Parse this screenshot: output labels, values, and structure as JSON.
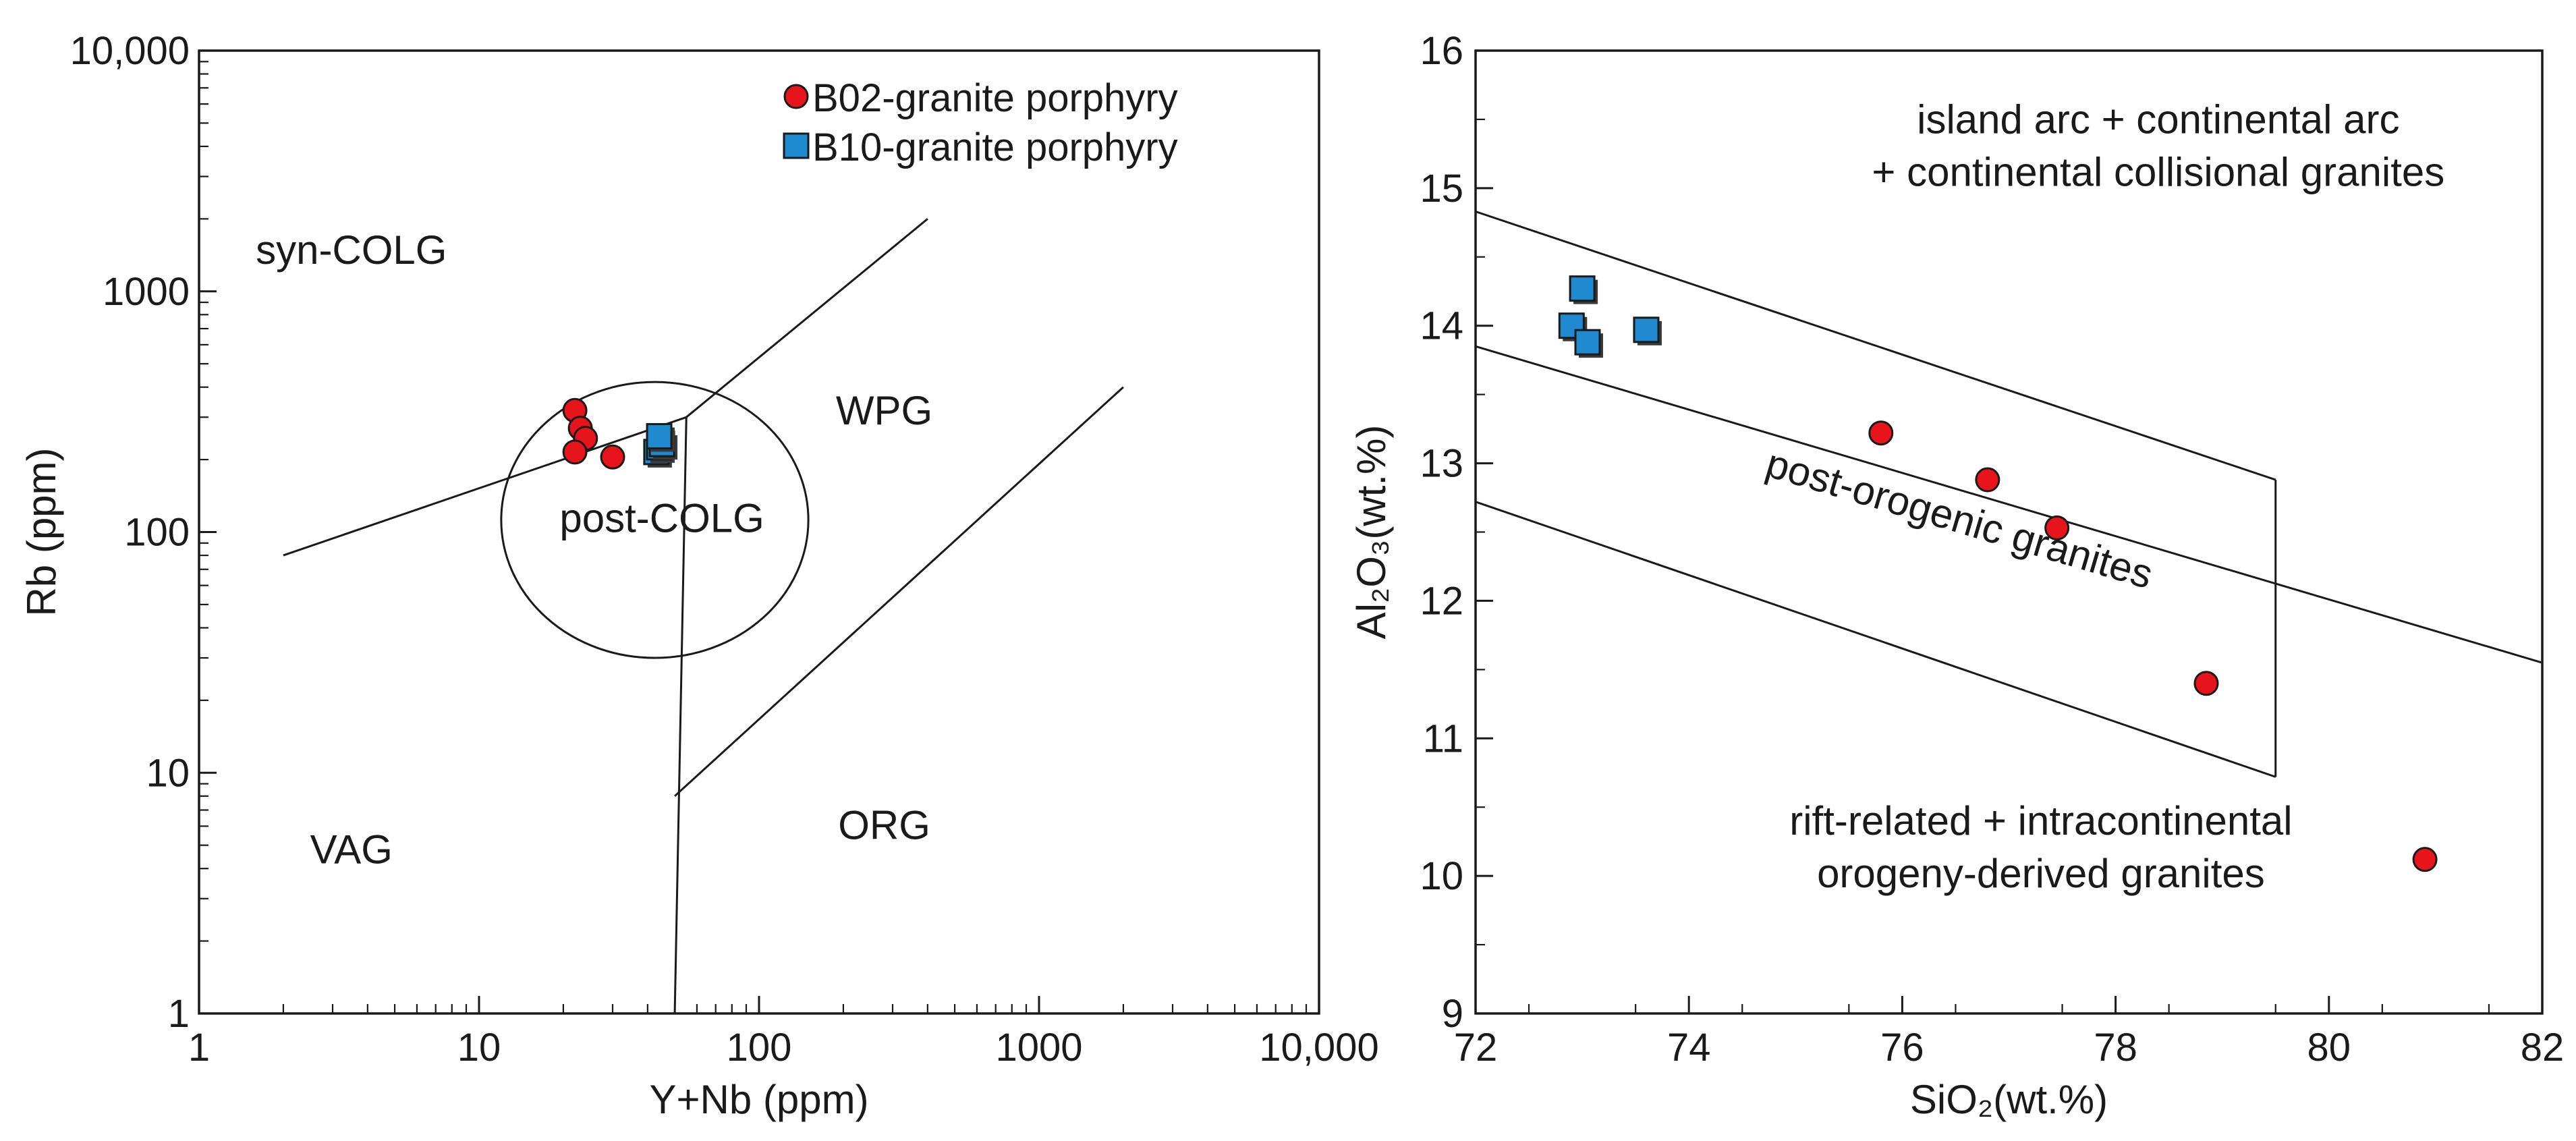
{
  "chart_data": [
    {
      "type": "scatter",
      "xscale": "log",
      "yscale": "log",
      "xlim": [
        1,
        10000
      ],
      "ylim": [
        1,
        10000
      ],
      "xlabel": "Y+Nb (ppm)",
      "ylabel": "Rb (ppm)",
      "xticks": [
        {
          "v": 1,
          "label": "1"
        },
        {
          "v": 10,
          "label": "10"
        },
        {
          "v": 100,
          "label": "100"
        },
        {
          "v": 1000,
          "label": "1000"
        },
        {
          "v": 10000,
          "label": "10,000"
        }
      ],
      "yticks": [
        {
          "v": 1,
          "label": "1"
        },
        {
          "v": 10,
          "label": "10"
        },
        {
          "v": 100,
          "label": "100"
        },
        {
          "v": 1000,
          "label": "1000"
        },
        {
          "v": 10000,
          "label": "10,000"
        }
      ],
      "legend": {
        "position": "top-right",
        "entries": [
          {
            "label": "B02-granite porphyry",
            "marker": "circle",
            "color": "#e8141c"
          },
          {
            "label": "B10-granite porphyry",
            "marker": "square",
            "color": "#1f8ad0"
          }
        ]
      },
      "fields": [
        {
          "label": "syn-COLG",
          "x": 3.5,
          "y": 1300
        },
        {
          "label": "WPG",
          "x": 280,
          "y": 280
        },
        {
          "label": "post-COLG",
          "x": 45,
          "y": 100
        },
        {
          "label": "VAG",
          "x": 3.5,
          "y": 4.2
        },
        {
          "label": "ORG",
          "x": 280,
          "y": 5.3
        }
      ],
      "boundaries": [
        {
          "name": "lower",
          "points": [
            [
              2,
              80
            ],
            [
              55,
              300
            ],
            [
              400,
              2000
            ]
          ]
        },
        {
          "name": "vertical",
          "points": [
            [
              50,
              1
            ],
            [
              55,
              300
            ]
          ]
        },
        {
          "name": "wpg-org",
          "points": [
            [
              50,
              8
            ],
            [
              2000,
              400
            ]
          ]
        }
      ],
      "post_colg_ellipse": {
        "cx": 45,
        "cy": 108,
        "x_span": [
          12,
          150
        ],
        "y_span": [
          30,
          420
        ]
      },
      "series": [
        {
          "name": "B02-granite porphyry",
          "marker": "circle",
          "points": [
            [
              22,
              320
            ],
            [
              23,
              270
            ],
            [
              24,
              245
            ],
            [
              22,
              215
            ],
            [
              30,
              205
            ]
          ]
        },
        {
          "name": "B10-granite porphyry",
          "marker": "square",
          "points": [
            [
              43,
              215
            ],
            [
              44,
              225
            ],
            [
              45,
              232
            ],
            [
              44,
              250
            ]
          ]
        }
      ]
    },
    {
      "type": "scatter",
      "xlim": [
        72,
        82
      ],
      "ylim": [
        9,
        16
      ],
      "xlabel": "SiO₂(wt.%)",
      "ylabel": "Al₂O₃(wt.%)",
      "xticks": [
        {
          "v": 72,
          "label": "72"
        },
        {
          "v": 74,
          "label": "74"
        },
        {
          "v": 76,
          "label": "76"
        },
        {
          "v": 78,
          "label": "78"
        },
        {
          "v": 80,
          "label": "80"
        },
        {
          "v": 82,
          "label": "82"
        }
      ],
      "yticks": [
        {
          "v": 9,
          "label": "9"
        },
        {
          "v": 10,
          "label": "10"
        },
        {
          "v": 11,
          "label": "11"
        },
        {
          "v": 12,
          "label": "12"
        },
        {
          "v": 13,
          "label": "13"
        },
        {
          "v": 14,
          "label": "14"
        },
        {
          "v": 15,
          "label": "15"
        },
        {
          "v": 16,
          "label": "16"
        }
      ],
      "fields": [
        {
          "lines": [
            "island arc + continental arc",
            "+ continental collisional granites"
          ],
          "x": 78.4,
          "y": 15.4
        },
        {
          "label": "post-orogenic granites",
          "x": 76.5,
          "y": 12.5,
          "angle": 16.5
        },
        {
          "lines": [
            "rift-related + intracontinental",
            "orogeny-derived granites"
          ],
          "x": 77.3,
          "y": 10.3
        }
      ],
      "boundaries": [
        {
          "name": "upper",
          "points": [
            [
              72,
              14.83
            ],
            [
              79.5,
              12.88
            ]
          ]
        },
        {
          "name": "middle",
          "points": [
            [
              72,
              13.85
            ],
            [
              82,
              11.55
            ]
          ]
        },
        {
          "name": "lower",
          "points": [
            [
              72,
              12.72
            ],
            [
              79.5,
              10.72
            ]
          ]
        },
        {
          "name": "right",
          "points": [
            [
              79.5,
              12.88
            ],
            [
              79.5,
              10.72
            ]
          ]
        }
      ],
      "series": [
        {
          "name": "B02-granite porphyry",
          "marker": "circle",
          "points": [
            [
              75.8,
              13.22
            ],
            [
              76.8,
              12.88
            ],
            [
              77.45,
              12.53
            ],
            [
              78.85,
              11.4
            ],
            [
              80.9,
              10.12
            ]
          ]
        },
        {
          "name": "B10-granite porphyry",
          "marker": "square",
          "points": [
            [
              73.0,
              14.27
            ],
            [
              72.9,
              14.0
            ],
            [
              73.05,
              13.88
            ],
            [
              73.6,
              13.97
            ]
          ]
        }
      ]
    }
  ]
}
